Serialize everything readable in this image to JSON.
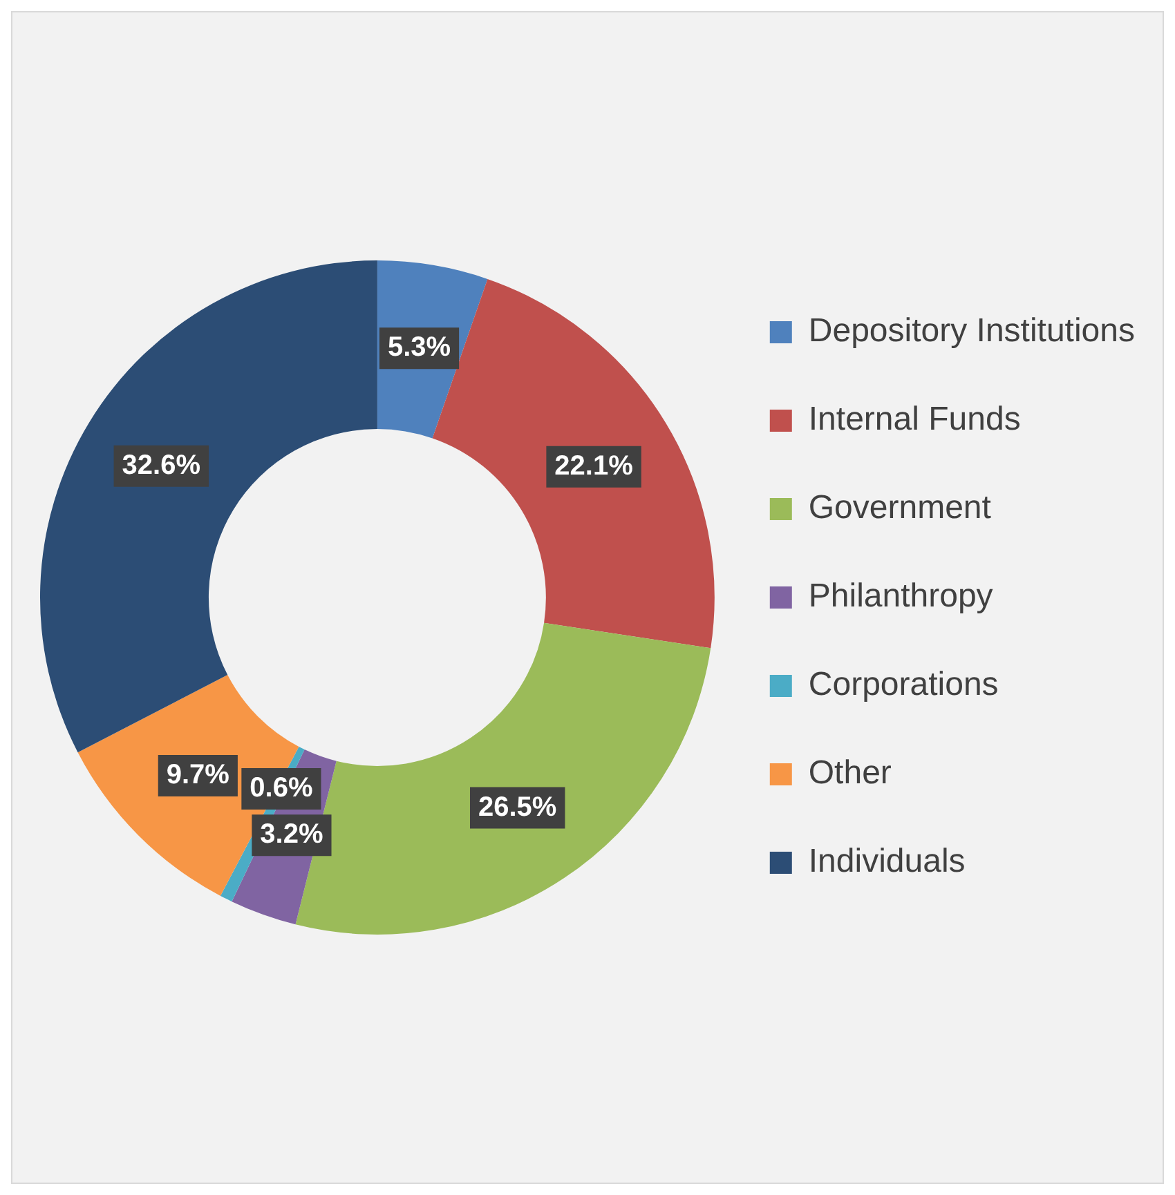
{
  "chart_data": {
    "type": "donut",
    "categories": [
      "Depository Institutions",
      "Internal Funds",
      "Government",
      "Philanthropy",
      "Corporations",
      "Other",
      "Individuals"
    ],
    "values": [
      5.3,
      22.1,
      26.5,
      3.2,
      0.6,
      9.7,
      32.6
    ],
    "colors": [
      "#4f81bd",
      "#c0504d",
      "#9bbb59",
      "#8064a2",
      "#4bacc6",
      "#f79646",
      "#2c4d75"
    ],
    "value_labels": [
      "5.3%",
      "22.1%",
      "26.5%",
      "3.2%",
      "0.6%",
      "9.7%",
      "32.6%"
    ],
    "legend": "right"
  }
}
